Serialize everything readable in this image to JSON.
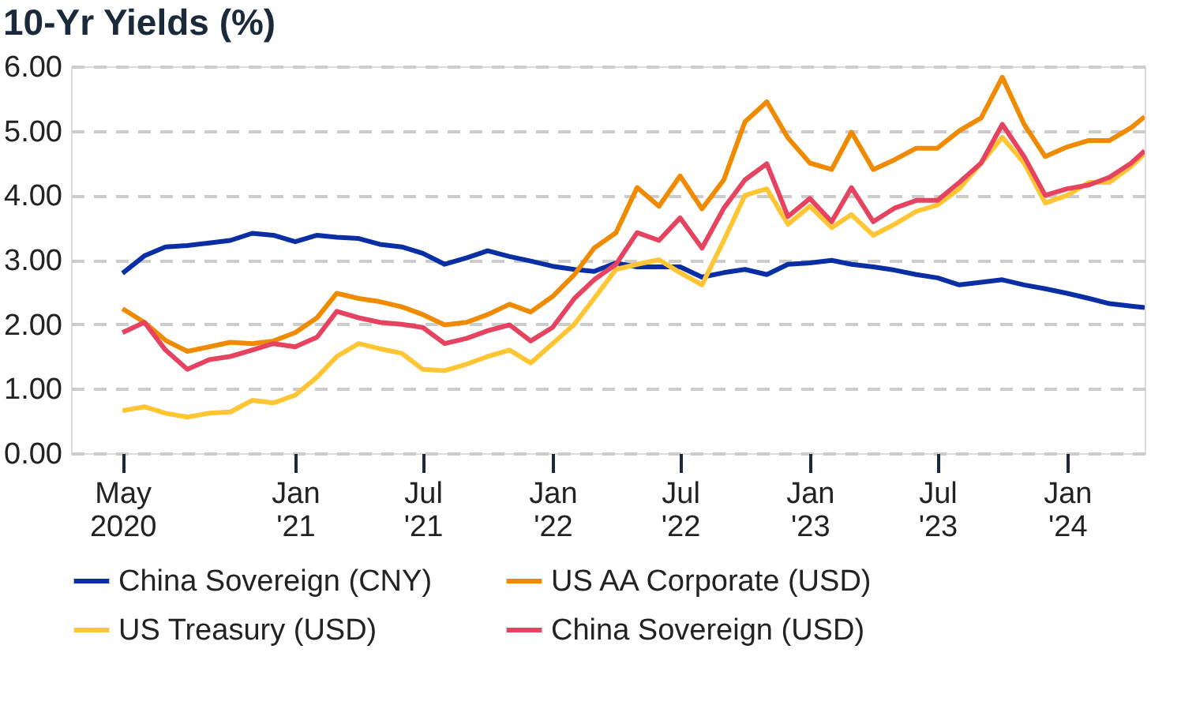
{
  "chart_data": {
    "type": "line",
    "title": "10-Yr Yields (%)",
    "x": [
      "2020-05-01",
      "2020-06-01",
      "2020-07-01",
      "2020-08-01",
      "2020-09-01",
      "2020-10-01",
      "2020-11-01",
      "2020-12-01",
      "2021-01-01",
      "2021-02-01",
      "2021-03-01",
      "2021-04-01",
      "2021-05-01",
      "2021-06-01",
      "2021-07-01",
      "2021-08-01",
      "2021-09-01",
      "2021-10-01",
      "2021-11-01",
      "2021-12-01",
      "2022-01-01",
      "2022-02-01",
      "2022-03-01",
      "2022-04-01",
      "2022-05-01",
      "2022-06-01",
      "2022-07-01",
      "2022-08-01",
      "2022-09-01",
      "2022-10-01",
      "2022-11-01",
      "2022-12-01",
      "2023-01-01",
      "2023-02-01",
      "2023-03-01",
      "2023-04-01",
      "2023-05-01",
      "2023-06-01",
      "2023-07-01",
      "2023-08-01",
      "2023-09-01",
      "2023-10-01",
      "2023-11-01",
      "2023-12-01",
      "2024-01-01",
      "2024-02-01",
      "2024-03-01",
      "2024-04-01",
      "2024-04-20"
    ],
    "series": [
      {
        "name": "China Sovereign (CNY)",
        "color": "#0a2ea4",
        "values": [
          2.79,
          3.06,
          3.2,
          3.22,
          3.26,
          3.3,
          3.41,
          3.38,
          3.28,
          3.38,
          3.35,
          3.33,
          3.24,
          3.2,
          3.1,
          2.93,
          3.03,
          3.14,
          3.05,
          2.98,
          2.9,
          2.85,
          2.82,
          2.95,
          2.89,
          2.89,
          2.89,
          2.73,
          2.8,
          2.85,
          2.77,
          2.93,
          2.95,
          2.99,
          2.93,
          2.89,
          2.84,
          2.77,
          2.72,
          2.61,
          2.65,
          2.69,
          2.61,
          2.55,
          2.48,
          2.4,
          2.32,
          2.28,
          2.26
        ]
      },
      {
        "name": "US AA Corporate (USD)",
        "color": "#f08a00",
        "values": [
          2.24,
          2.03,
          1.75,
          1.58,
          1.65,
          1.72,
          1.7,
          1.74,
          1.87,
          2.1,
          2.48,
          2.4,
          2.35,
          2.27,
          2.15,
          1.99,
          2.03,
          2.15,
          2.31,
          2.19,
          2.43,
          2.77,
          3.18,
          3.42,
          4.12,
          3.83,
          4.3,
          3.79,
          4.24,
          5.14,
          5.45,
          4.89,
          4.5,
          4.4,
          4.98,
          4.4,
          4.55,
          4.73,
          4.73,
          5.0,
          5.2,
          5.83,
          5.1,
          4.6,
          4.75,
          4.85,
          4.85,
          5.05,
          5.22
        ]
      },
      {
        "name": "US Treasury (USD)",
        "color": "#ffc533",
        "values": [
          0.66,
          0.72,
          0.62,
          0.56,
          0.62,
          0.64,
          0.82,
          0.78,
          0.9,
          1.18,
          1.5,
          1.7,
          1.62,
          1.55,
          1.3,
          1.28,
          1.38,
          1.5,
          1.6,
          1.4,
          1.7,
          2.0,
          2.4,
          2.85,
          2.93,
          3.0,
          2.8,
          2.61,
          3.3,
          4.0,
          4.1,
          3.55,
          3.83,
          3.5,
          3.7,
          3.38,
          3.55,
          3.75,
          3.85,
          4.1,
          4.5,
          4.9,
          4.5,
          3.88,
          4.0,
          4.2,
          4.2,
          4.45,
          4.65
        ]
      },
      {
        "name": "China Sovereign (USD)",
        "color": "#e5435f",
        "values": [
          1.87,
          2.03,
          1.6,
          1.3,
          1.45,
          1.5,
          1.6,
          1.7,
          1.65,
          1.8,
          2.2,
          2.1,
          2.03,
          2.0,
          1.95,
          1.7,
          1.78,
          1.9,
          1.99,
          1.74,
          1.95,
          2.4,
          2.69,
          2.93,
          3.42,
          3.3,
          3.65,
          3.18,
          3.8,
          4.24,
          4.49,
          3.67,
          3.95,
          3.59,
          4.12,
          3.59,
          3.8,
          3.92,
          3.92,
          4.2,
          4.5,
          5.1,
          4.6,
          4.0,
          4.1,
          4.16,
          4.28,
          4.5,
          4.69
        ]
      }
    ],
    "xlim": [
      "2020-02-18",
      "2024-04-20"
    ],
    "xticks": [
      {
        "value": "2020-05-01",
        "label": "May 2020"
      },
      {
        "value": "2021-01-01",
        "label": "Jan '21"
      },
      {
        "value": "2021-07-01",
        "label": "Jul '21"
      },
      {
        "value": "2022-01-01",
        "label": "Jan '22"
      },
      {
        "value": "2022-07-01",
        "label": "Jul '22"
      },
      {
        "value": "2023-01-01",
        "label": "Jan '23"
      },
      {
        "value": "2023-07-01",
        "label": "Jul '23"
      },
      {
        "value": "2024-01-01",
        "label": "Jan '24"
      }
    ],
    "ylim": [
      0,
      6
    ],
    "yticks": [
      {
        "value": 0,
        "label": "0.00"
      },
      {
        "value": 1,
        "label": "1.00"
      },
      {
        "value": 2,
        "label": "2.00"
      },
      {
        "value": 3,
        "label": "3.00"
      },
      {
        "value": 4,
        "label": "4.00"
      },
      {
        "value": 5,
        "label": "5.00"
      },
      {
        "value": 6,
        "label": "6.00"
      }
    ],
    "grid": "y",
    "legend": "bottom",
    "marker": "none",
    "line_style": "solid"
  }
}
